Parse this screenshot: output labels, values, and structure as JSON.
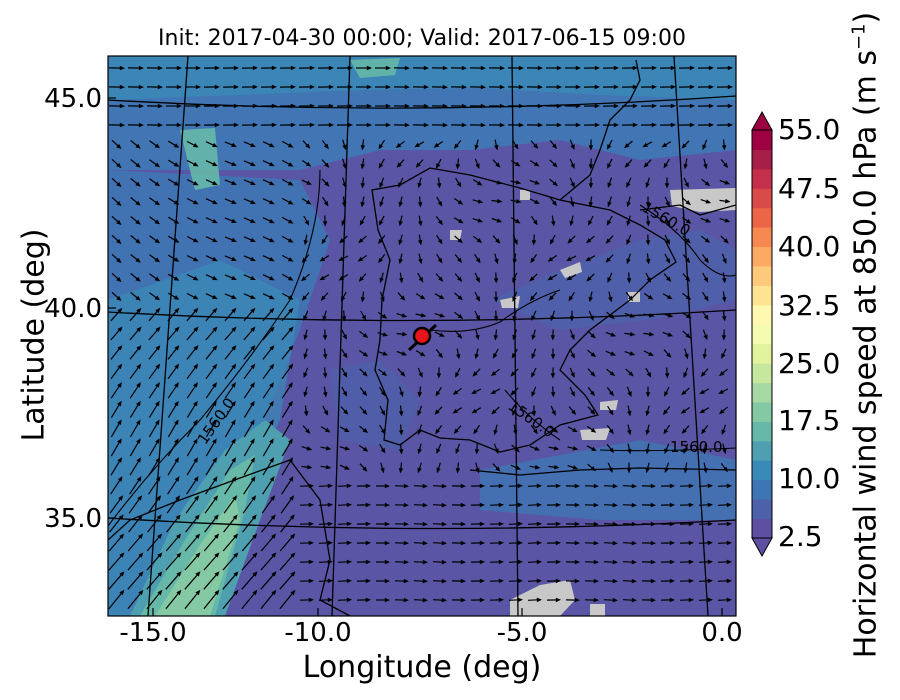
{
  "figure": {
    "title": "Init: 2017-04-30 00:00; Valid: 2017-06-15 09:00",
    "xlabel": "Longitude (deg)",
    "ylabel": "Latitude (deg)",
    "x_ticks": [
      "-15.0",
      "-10.0",
      "-5.0",
      "0.0"
    ],
    "y_ticks": [
      "45.0",
      "40.0",
      "35.0"
    ]
  },
  "map": {
    "variable": "Horizontal wind speed at 850.0 hPa",
    "lon_range": [
      -16,
      0.3
    ],
    "lat_range": [
      32.8,
      45.9
    ],
    "contour_labels": [
      "1560.0",
      "1560.0",
      "1560.0",
      "1560.0"
    ],
    "marker": {
      "lon": -7.7,
      "lat": 39.3,
      "color": "#e8141c"
    },
    "masked_color": "#c8c8c8"
  },
  "colorbar": {
    "label": "Horizontal wind speed at 850.0 hPa (m s",
    "label_exponent": "−1",
    "label_close": ")",
    "tick_labels": [
      "55.0",
      "47.5",
      "40.0",
      "32.5",
      "25.0",
      "17.5",
      "10.0",
      "2.5"
    ],
    "colors": [
      "#5e4fa2",
      "#4c61aa",
      "#3e75b4",
      "#3a8ab8",
      "#4ea0b1",
      "#66b8a8",
      "#84c9a4",
      "#a5d8a3",
      "#c6e79e",
      "#e2f39d",
      "#f5fbb0",
      "#fff8b0",
      "#fee492",
      "#fdc97a",
      "#fcaa63",
      "#f78852",
      "#ec6547",
      "#d94a4a",
      "#c4304a",
      "#a71e48",
      "#9e0142"
    ]
  }
}
